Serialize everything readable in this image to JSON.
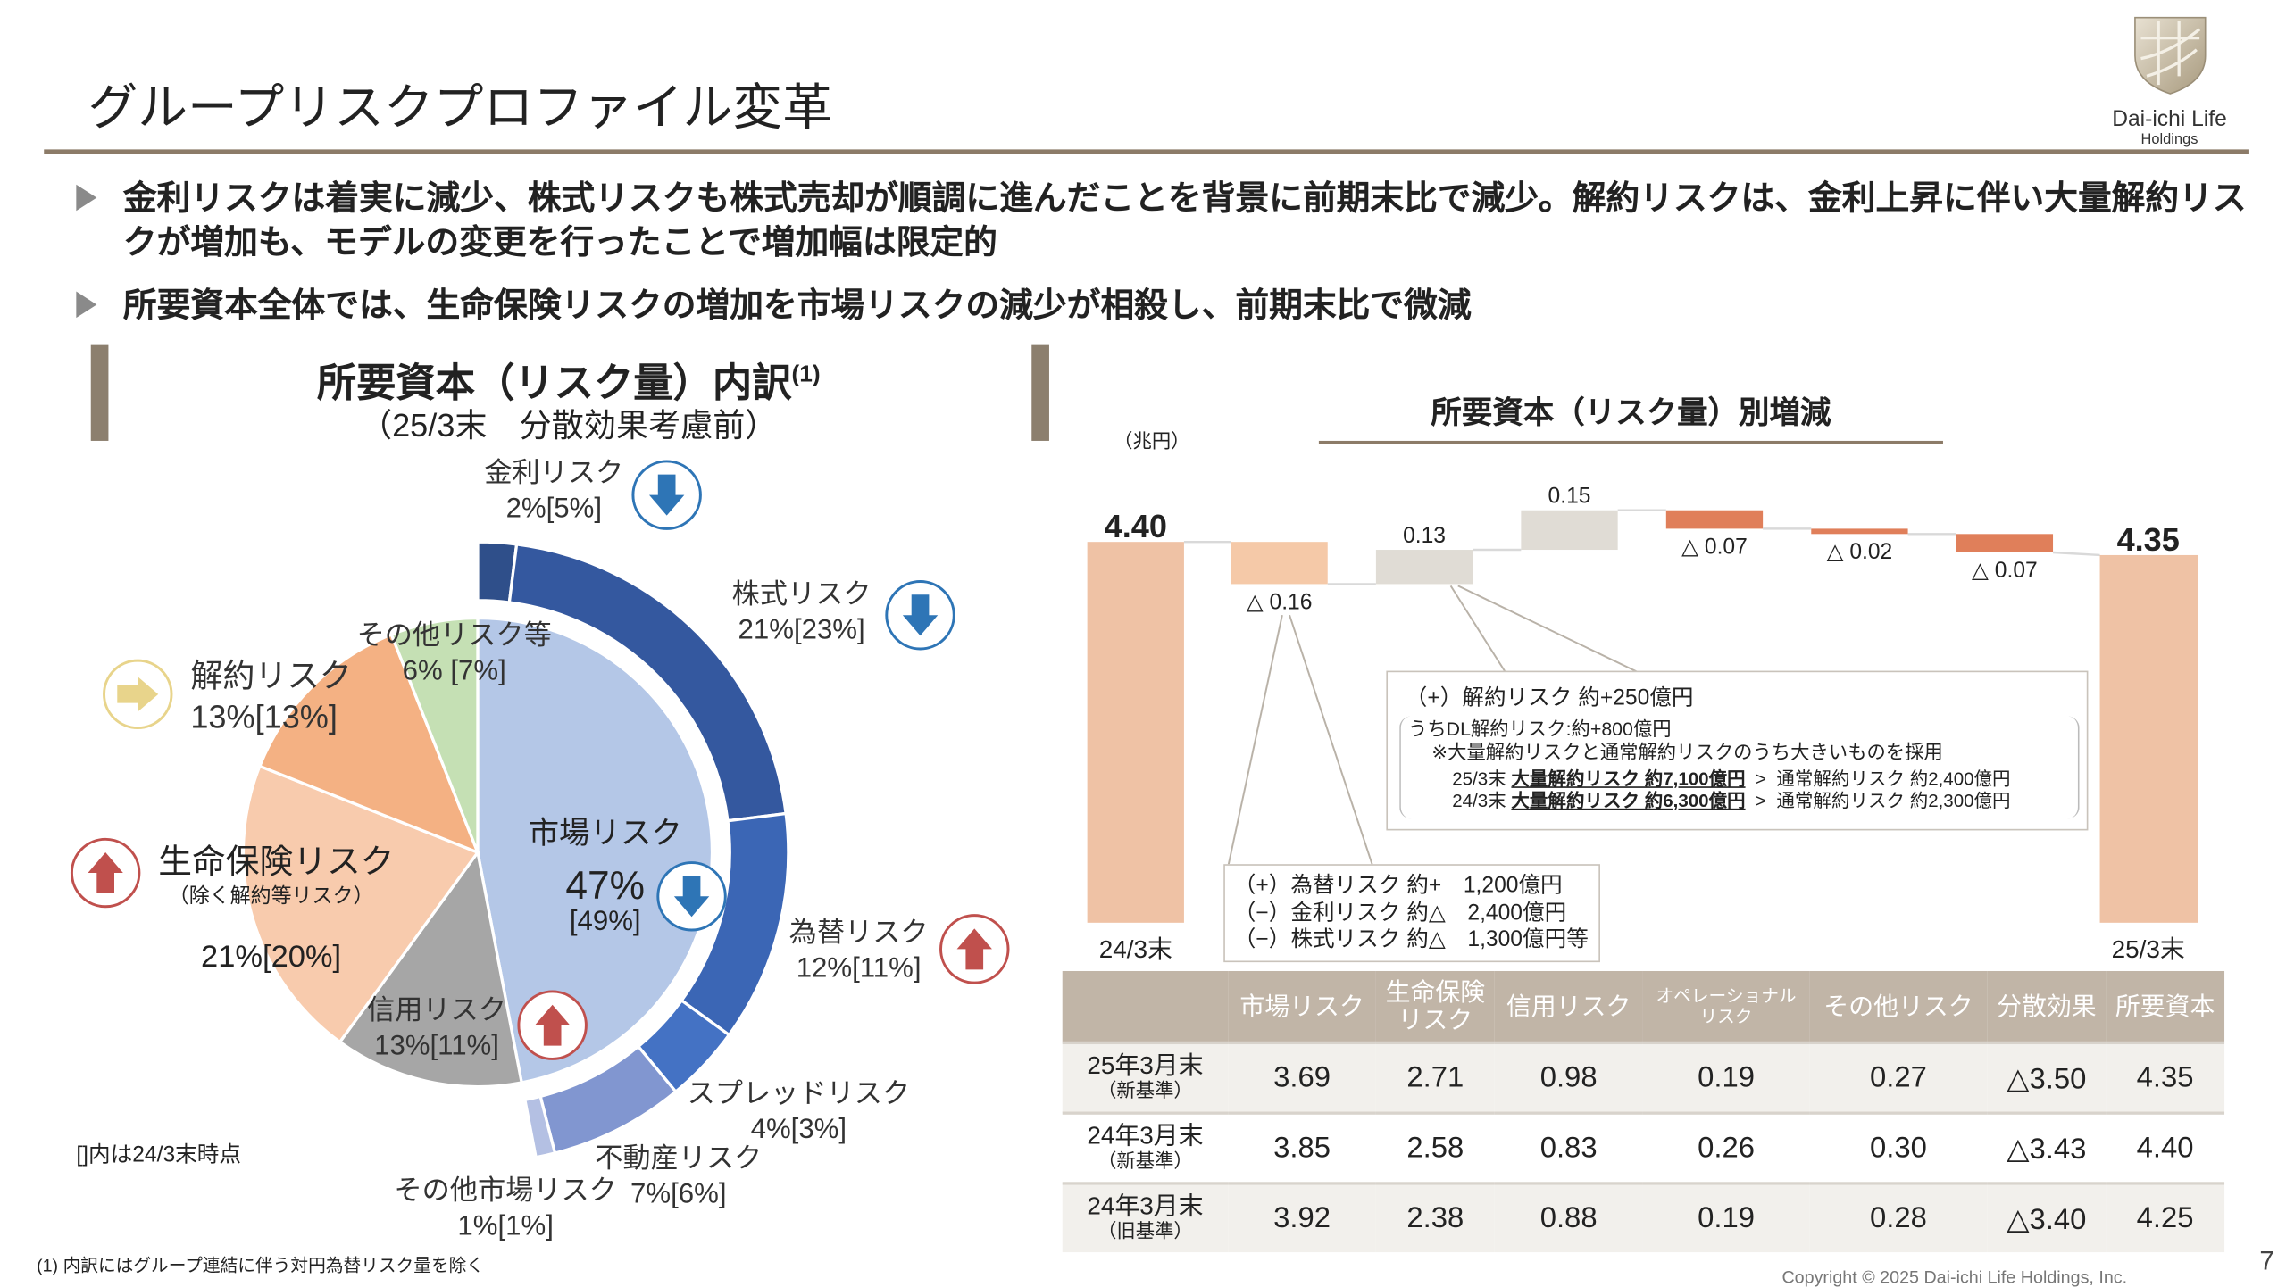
{
  "page": {
    "title": "グループリスクプロファイル変革",
    "bullets": [
      "金利リスクは着実に減少、株式リスクも株式売却が順調に進んだことを背景に前期末比で減少。解約リスクは、金利上昇に伴い大量解約リスクが増加も、モデルの変更を行ったことで増加幅は限定的",
      "所要資本全体では、生命保険リスクの増加を市場リスクの減少が相殺し、前期末比で微減"
    ],
    "logo": {
      "name": "Dai-ichi Life",
      "sub": "Holdings"
    },
    "footnote": "(1) 内訳にはグループ連結に伴う対円為替リスク量を除く",
    "copyright": "Copyright © 2025 Dai-ichi Life Holdings, Inc.",
    "page_number": "7"
  },
  "left_panel": {
    "title": "所要資本（リスク量）内訳",
    "title_sup": "(1)",
    "subtitle": "（25/3末　分散効果考慮前）",
    "bracket_note": "[]内は24/3末時点"
  },
  "right_panel": {
    "title": "所要資本（リスク量）別増減",
    "unit": "（兆円）",
    "note_fx": [
      "（+）為替リスク 約+　1,200億円",
      "（−）金利リスク 約△　2,400億円",
      "（−）株式リスク 約△　1,300億円等"
    ],
    "note_surrender": {
      "head": "（+）解約リスク 約+250億円",
      "line1": "うちDL解約リスク:約+800億円",
      "line2": "※大量解約リスクと通常解約リスクのうち大きいものを採用",
      "rows": [
        {
          "period": "25/3末",
          "mass": "大量解約リスク 約7,100億円",
          "gt": ">",
          "normal": "通常解約リスク 約2,400億円"
        },
        {
          "period": "24/3末",
          "mass": "大量解約リスク 約6,300億円",
          "gt": ">",
          "normal": "通常解約リスク 約2,300億円"
        }
      ]
    }
  },
  "chart_data": [
    {
      "type": "pie",
      "title": "所要資本（リスク量）内訳",
      "slices": [
        {
          "name": "市場リスク",
          "value": 47,
          "prev": 49,
          "pct_text": "47%",
          "prev_text": "[49%]",
          "trend": "down",
          "color": "#b4c7e7"
        },
        {
          "name": "信用リスク",
          "value": 13,
          "prev": 11,
          "pct_text": "13%[11%]",
          "trend": "up",
          "color": "#a6a6a6"
        },
        {
          "name": "生命保険リスク",
          "sub": "（除く解約等リスク）",
          "value": 21,
          "prev": 20,
          "pct_text": "21%[20%]",
          "trend": "up",
          "color": "#f8cbad"
        },
        {
          "name": "解約リスク",
          "value": 13,
          "prev": 13,
          "pct_text": "13%[13%]",
          "trend": "flat",
          "color": "#f4b183"
        },
        {
          "name": "その他リスク等",
          "value": 6,
          "prev": 7,
          "pct_text": "6% [7%]",
          "color": "#c5e0b4"
        }
      ],
      "market_breakdown": [
        {
          "name": "金利リスク",
          "value": 2,
          "prev": 5,
          "pct_text": "2%[5%]",
          "trend": "down",
          "color": "#2f4f8a"
        },
        {
          "name": "株式リスク",
          "value": 21,
          "prev": 23,
          "pct_text": "21%[23%]",
          "trend": "down",
          "color": "#34589f"
        },
        {
          "name": "為替リスク",
          "value": 12,
          "prev": 11,
          "pct_text": "12%[11%]",
          "trend": "up",
          "color": "#3b66b5"
        },
        {
          "name": "スプレッドリスク",
          "value": 4,
          "prev": 3,
          "pct_text": "4%[3%]",
          "color": "#4472c4"
        },
        {
          "name": "不動産リスク",
          "value": 7,
          "prev": 6,
          "pct_text": "7%[6%]",
          "color": "#8196d0"
        },
        {
          "name": "その他市場リスク",
          "value": 1,
          "prev": 1,
          "pct_text": "1%[1%]",
          "color": "#b4c0e3"
        }
      ],
      "colors": {
        "down": "#2e75b6",
        "up": "#c0504d",
        "flat": "#e8d48b"
      }
    },
    {
      "type": "waterfall",
      "title": "所要資本（リスク量）別増減",
      "ylabel": "（兆円）",
      "start": {
        "label": "24/3末",
        "value": 4.4,
        "text": "4.40",
        "color": "#efc2a5"
      },
      "end": {
        "label": "25/3末",
        "value": 4.35,
        "text": "4.35",
        "color": "#efc2a5"
      },
      "steps": [
        {
          "value": -0.16,
          "text": "△ 0.16",
          "color": "#f5c9a8"
        },
        {
          "value": 0.13,
          "text": "0.13",
          "color": "#e0dcd5"
        },
        {
          "value": 0.15,
          "text": "0.15",
          "color": "#e0dcd5"
        },
        {
          "value": -0.07,
          "text": "△ 0.07",
          "color": "#e07f5a"
        },
        {
          "value": -0.02,
          "text": "△ 0.02",
          "color": "#e07f5a"
        },
        {
          "value": -0.07,
          "text": "△ 0.07",
          "color": "#e07f5a"
        }
      ]
    },
    {
      "type": "table",
      "columns": [
        "",
        "市場リスク",
        "生命保険リスク",
        "信用リスク",
        "オペレーショナルリスク",
        "その他リスク",
        "分散効果",
        "所要資本"
      ],
      "column_lines": [
        [
          "",
          ""
        ],
        [
          "市場リスク"
        ],
        [
          "生命保険",
          "リスク"
        ],
        [
          "信用リスク"
        ],
        [
          "オペレーショナル",
          "リスク"
        ],
        [
          "その他リスク"
        ],
        [
          "分散効果"
        ],
        [
          "所要資本"
        ]
      ],
      "rows": [
        {
          "label": "25年3月末",
          "sub": "（新基準）",
          "values": [
            "3.69",
            "2.71",
            "0.98",
            "0.19",
            "0.27",
            "△3.50",
            "4.35"
          ]
        },
        {
          "label": "24年3月末",
          "sub": "（新基準）",
          "values": [
            "3.85",
            "2.58",
            "0.83",
            "0.26",
            "0.30",
            "△3.43",
            "4.40"
          ]
        },
        {
          "label": "24年3月末",
          "sub": "（旧基準）",
          "values": [
            "3.92",
            "2.38",
            "0.88",
            "0.19",
            "0.28",
            "△3.40",
            "4.25"
          ]
        }
      ]
    }
  ]
}
